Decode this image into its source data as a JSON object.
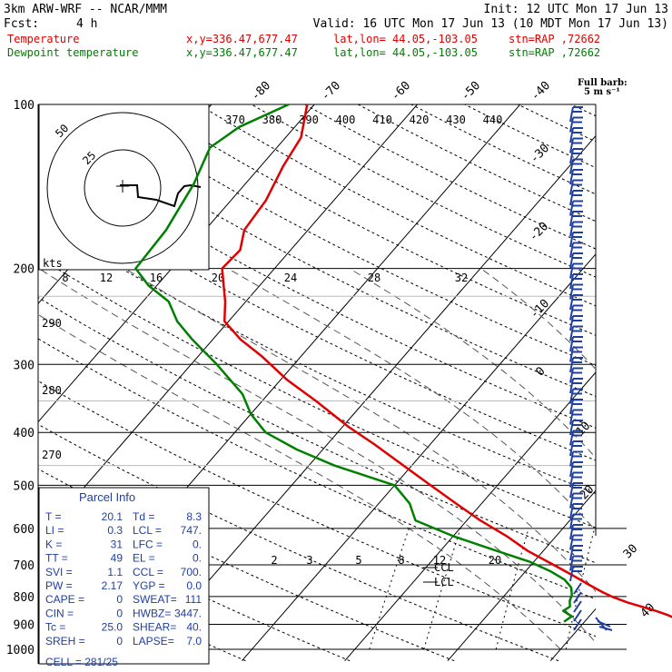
{
  "header": {
    "model": "3km ARW-WRF -- NCAR/MMM",
    "init": "Init: 12 UTC Mon 17 Jun 13",
    "fcst_label": "Fcst:",
    "fcst_value": "4 h",
    "valid": "Valid: 16 UTC Mon 17 Jun 13 (10 MDT Mon 17 Jun 13)",
    "temp_label": "Temperature",
    "dew_label": "Dewpoint temperature",
    "xy": "x,y=336.47,677.47",
    "latlon": "lat,lon= 44.05,-103.05",
    "stn": "stn=RAP ,72662"
  },
  "barb_legend": {
    "title": "Full barb:",
    "value": "5 m s⁻¹"
  },
  "parcel_info": {
    "title": "Parcel Info",
    "rows": [
      [
        "T  =",
        "20.1",
        "Td =",
        "8.3"
      ],
      [
        "LI =",
        "0.3",
        "LCL =",
        "747."
      ],
      [
        "K  =",
        "31",
        "LFC =",
        "0."
      ],
      [
        "TT =",
        "49",
        "EL  =",
        "0."
      ],
      [
        "SVI =",
        "1.1",
        "CCL =",
        "700."
      ],
      [
        "PW =",
        "2.17",
        "YGP =",
        "0.0"
      ],
      [
        "CAPE =",
        "0",
        "SWEAT=",
        "111"
      ],
      [
        "CIN =",
        "0",
        "HWBZ=",
        "3447."
      ],
      [
        "Tc =",
        "25.0",
        "SHEAR=",
        "40."
      ],
      [
        "SREH =",
        "0",
        "LAPSE=",
        "7.0"
      ]
    ],
    "cell": "CELL = 281/25"
  },
  "hodograph": {
    "unit_label": "kts",
    "ring_labels": [
      "25",
      "50"
    ],
    "speed_labels": [
      "8",
      "12",
      "16",
      "20",
      "24",
      "28",
      "32"
    ]
  },
  "level_markers": {
    "ccl": "CCL",
    "lcl": "LCL"
  },
  "chart_data": {
    "type": "line",
    "title": "",
    "ylabel": "",
    "y_axis_scale": "log pressure (hPa)",
    "ylim": [
      1000,
      100
    ],
    "pressure_levels": [
      100,
      200,
      300,
      400,
      500,
      600,
      700,
      800,
      900,
      1000
    ],
    "pressure_tick_labels": [
      "100",
      "200",
      "300",
      "400",
      "500",
      "600",
      "700",
      "800",
      "900",
      "1000"
    ],
    "isotherm_labels_top": [
      "-80",
      "-70",
      "-60",
      "-50",
      "-40"
    ],
    "isotherm_labels_right": [
      "-30",
      "-20",
      "-10",
      "0",
      "10",
      "20",
      "30",
      "40"
    ],
    "theta_labels_top": [
      "370",
      "380",
      "390",
      "400",
      "410",
      "420",
      "430",
      "440"
    ],
    "theta_labels_left": [
      "290",
      "280",
      "270"
    ],
    "mixing_ratio_labels": [
      "2",
      "3",
      "5",
      "8",
      "12",
      "20"
    ],
    "series": [
      {
        "name": "Temperature",
        "color": "#e00000",
        "p": [
          890,
          865,
          850,
          820,
          800,
          785,
          760,
          730,
          700,
          660,
          620,
          580,
          540,
          500,
          460,
          420,
          390,
          350,
          320,
          290,
          270,
          250,
          230,
          215,
          200,
          185,
          170,
          150,
          130,
          115,
          100
        ],
        "T": [
          19.5,
          17.5,
          16.0,
          12.5,
          10.5,
          9.2,
          7.2,
          4.8,
          2.2,
          -1.5,
          -4.8,
          -8.7,
          -12.5,
          -16.5,
          -20.8,
          -25.5,
          -29.5,
          -34.8,
          -39.4,
          -43.8,
          -47.3,
          -50.4,
          -52.0,
          -53.5,
          -55.1,
          -54.9,
          -56.2,
          -56.6,
          -57.8,
          -58.5,
          -60.7
        ]
      },
      {
        "name": "Dewpoint temperature",
        "color": "#008000",
        "p": [
          890,
          870,
          850,
          835,
          815,
          795,
          770,
          745,
          720,
          690,
          660,
          620,
          580,
          540,
          500,
          460,
          430,
          400,
          370,
          340,
          300,
          270,
          250,
          230,
          215,
          200,
          170,
          140,
          120,
          110,
          100
        ],
        "Td": [
          8.0,
          8.3,
          7.0,
          7.3,
          6.8,
          6.5,
          5.8,
          4.5,
          2.5,
          -0.5,
          -4.5,
          -10.0,
          -15.0,
          -17.0,
          -20.0,
          -27.5,
          -32.5,
          -37.0,
          -40.0,
          -42.5,
          -47.5,
          -52.0,
          -55.0,
          -57.5,
          -60.8,
          -63.5,
          -63.8,
          -65.0,
          -66.5,
          -65.4,
          -62.5
        ]
      }
    ],
    "wind_barbs": "right edge, 100-900 hPa"
  }
}
